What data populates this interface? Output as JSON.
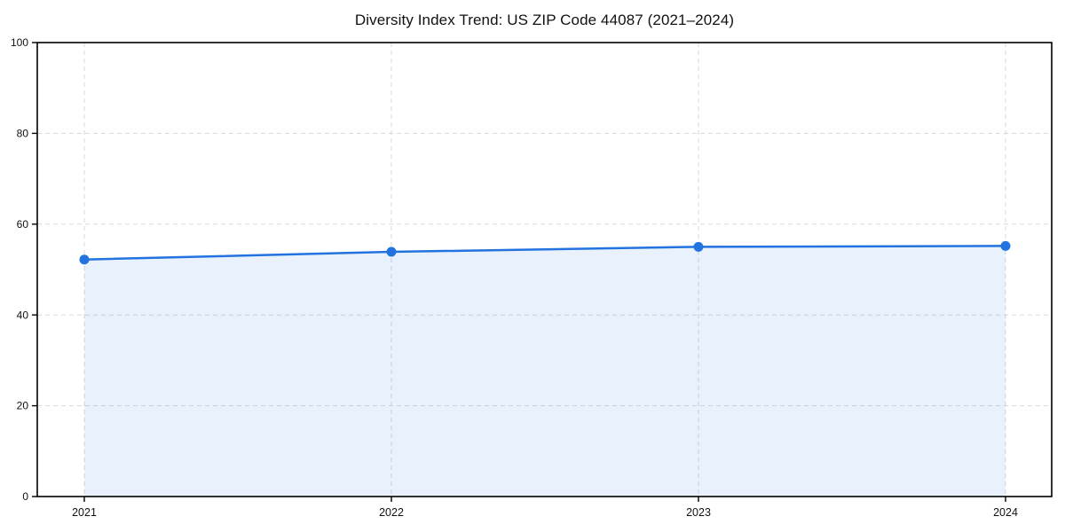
{
  "figure": {
    "background": "#ffffff"
  },
  "chart_data": {
    "type": "area",
    "title": "Diversity Index Trend: US ZIP Code 44087 (2021–2024)",
    "xlabel": "",
    "ylabel": "",
    "x_categories": [
      "2021",
      "2022",
      "2023",
      "2024"
    ],
    "series": [
      {
        "name": "Diversity Index",
        "values": [
          52.2,
          53.9,
          55.0,
          55.2
        ]
      }
    ],
    "ylim": [
      0,
      100
    ],
    "yticks": [
      0,
      20,
      40,
      60,
      80,
      100
    ],
    "grid": true,
    "grid_style": "dashed",
    "legend_position": "none",
    "colors": {
      "line": "#2273df",
      "marker": "#2273df",
      "fill": "rgba(34,115,223,0.10)",
      "grid": "#d9d9d9",
      "spine": "#000000",
      "tick_label": "#111111",
      "title": "#111111"
    }
  }
}
